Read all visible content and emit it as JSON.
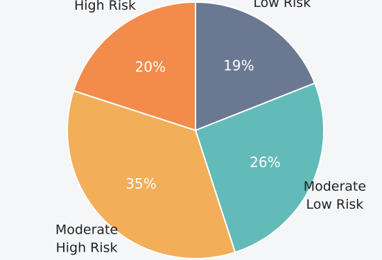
{
  "chart_data": {
    "type": "pie",
    "title": "",
    "start_angle_deg": 0,
    "direction": "clockwise",
    "slices": [
      {
        "label_lines": [
          "Low Risk"
        ],
        "value": 19,
        "value_label": "19%",
        "color": "#6b7891"
      },
      {
        "label_lines": [
          "Moderate",
          "Low Risk"
        ],
        "value": 26,
        "value_label": "26%",
        "color": "#62bbb8"
      },
      {
        "label_lines": [
          "Moderate",
          "High Risk"
        ],
        "value": 35,
        "value_label": "35%",
        "color": "#f2ae59"
      },
      {
        "label_lines": [
          "High Risk"
        ],
        "value": 20,
        "value_label": "20%",
        "color": "#f38b4b"
      }
    ]
  }
}
